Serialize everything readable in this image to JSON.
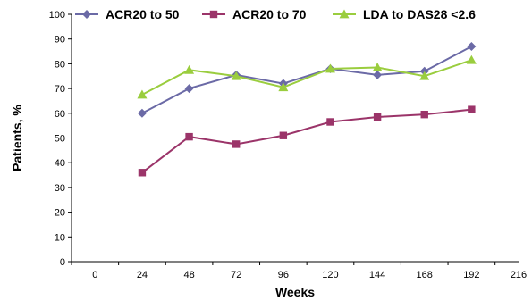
{
  "chart_data": {
    "type": "line",
    "title": "",
    "xlabel": "Weeks",
    "ylabel": "Patients, %",
    "xlim": [
      -12,
      216
    ],
    "ylim": [
      0,
      100
    ],
    "xticks": [
      0,
      24,
      48,
      72,
      96,
      120,
      144,
      168,
      192,
      216
    ],
    "yticks": [
      0,
      10,
      20,
      30,
      40,
      50,
      60,
      70,
      80,
      90,
      100
    ],
    "grid": false,
    "legend_position": "top",
    "series": [
      {
        "name": "ACR20 to 50",
        "color": "#6b6aa6",
        "marker": "diamond",
        "x": [
          24,
          48,
          72,
          96,
          120,
          144,
          168,
          192
        ],
        "values": [
          60,
          70,
          75.5,
          72,
          78,
          75.5,
          77,
          87
        ]
      },
      {
        "name": "ACR20 to 70",
        "color": "#9b3469",
        "marker": "square",
        "x": [
          24,
          48,
          72,
          96,
          120,
          144,
          168,
          192
        ],
        "values": [
          36,
          50.5,
          47.5,
          51,
          56.5,
          58.5,
          59.5,
          61.5
        ]
      },
      {
        "name": "LDA to DAS28 <2.6",
        "color": "#9acd3e",
        "marker": "triangle",
        "x": [
          24,
          48,
          72,
          96,
          120,
          144,
          168,
          192
        ],
        "values": [
          67.5,
          77.5,
          75,
          70.5,
          78,
          78.5,
          75,
          81.5
        ]
      }
    ]
  }
}
